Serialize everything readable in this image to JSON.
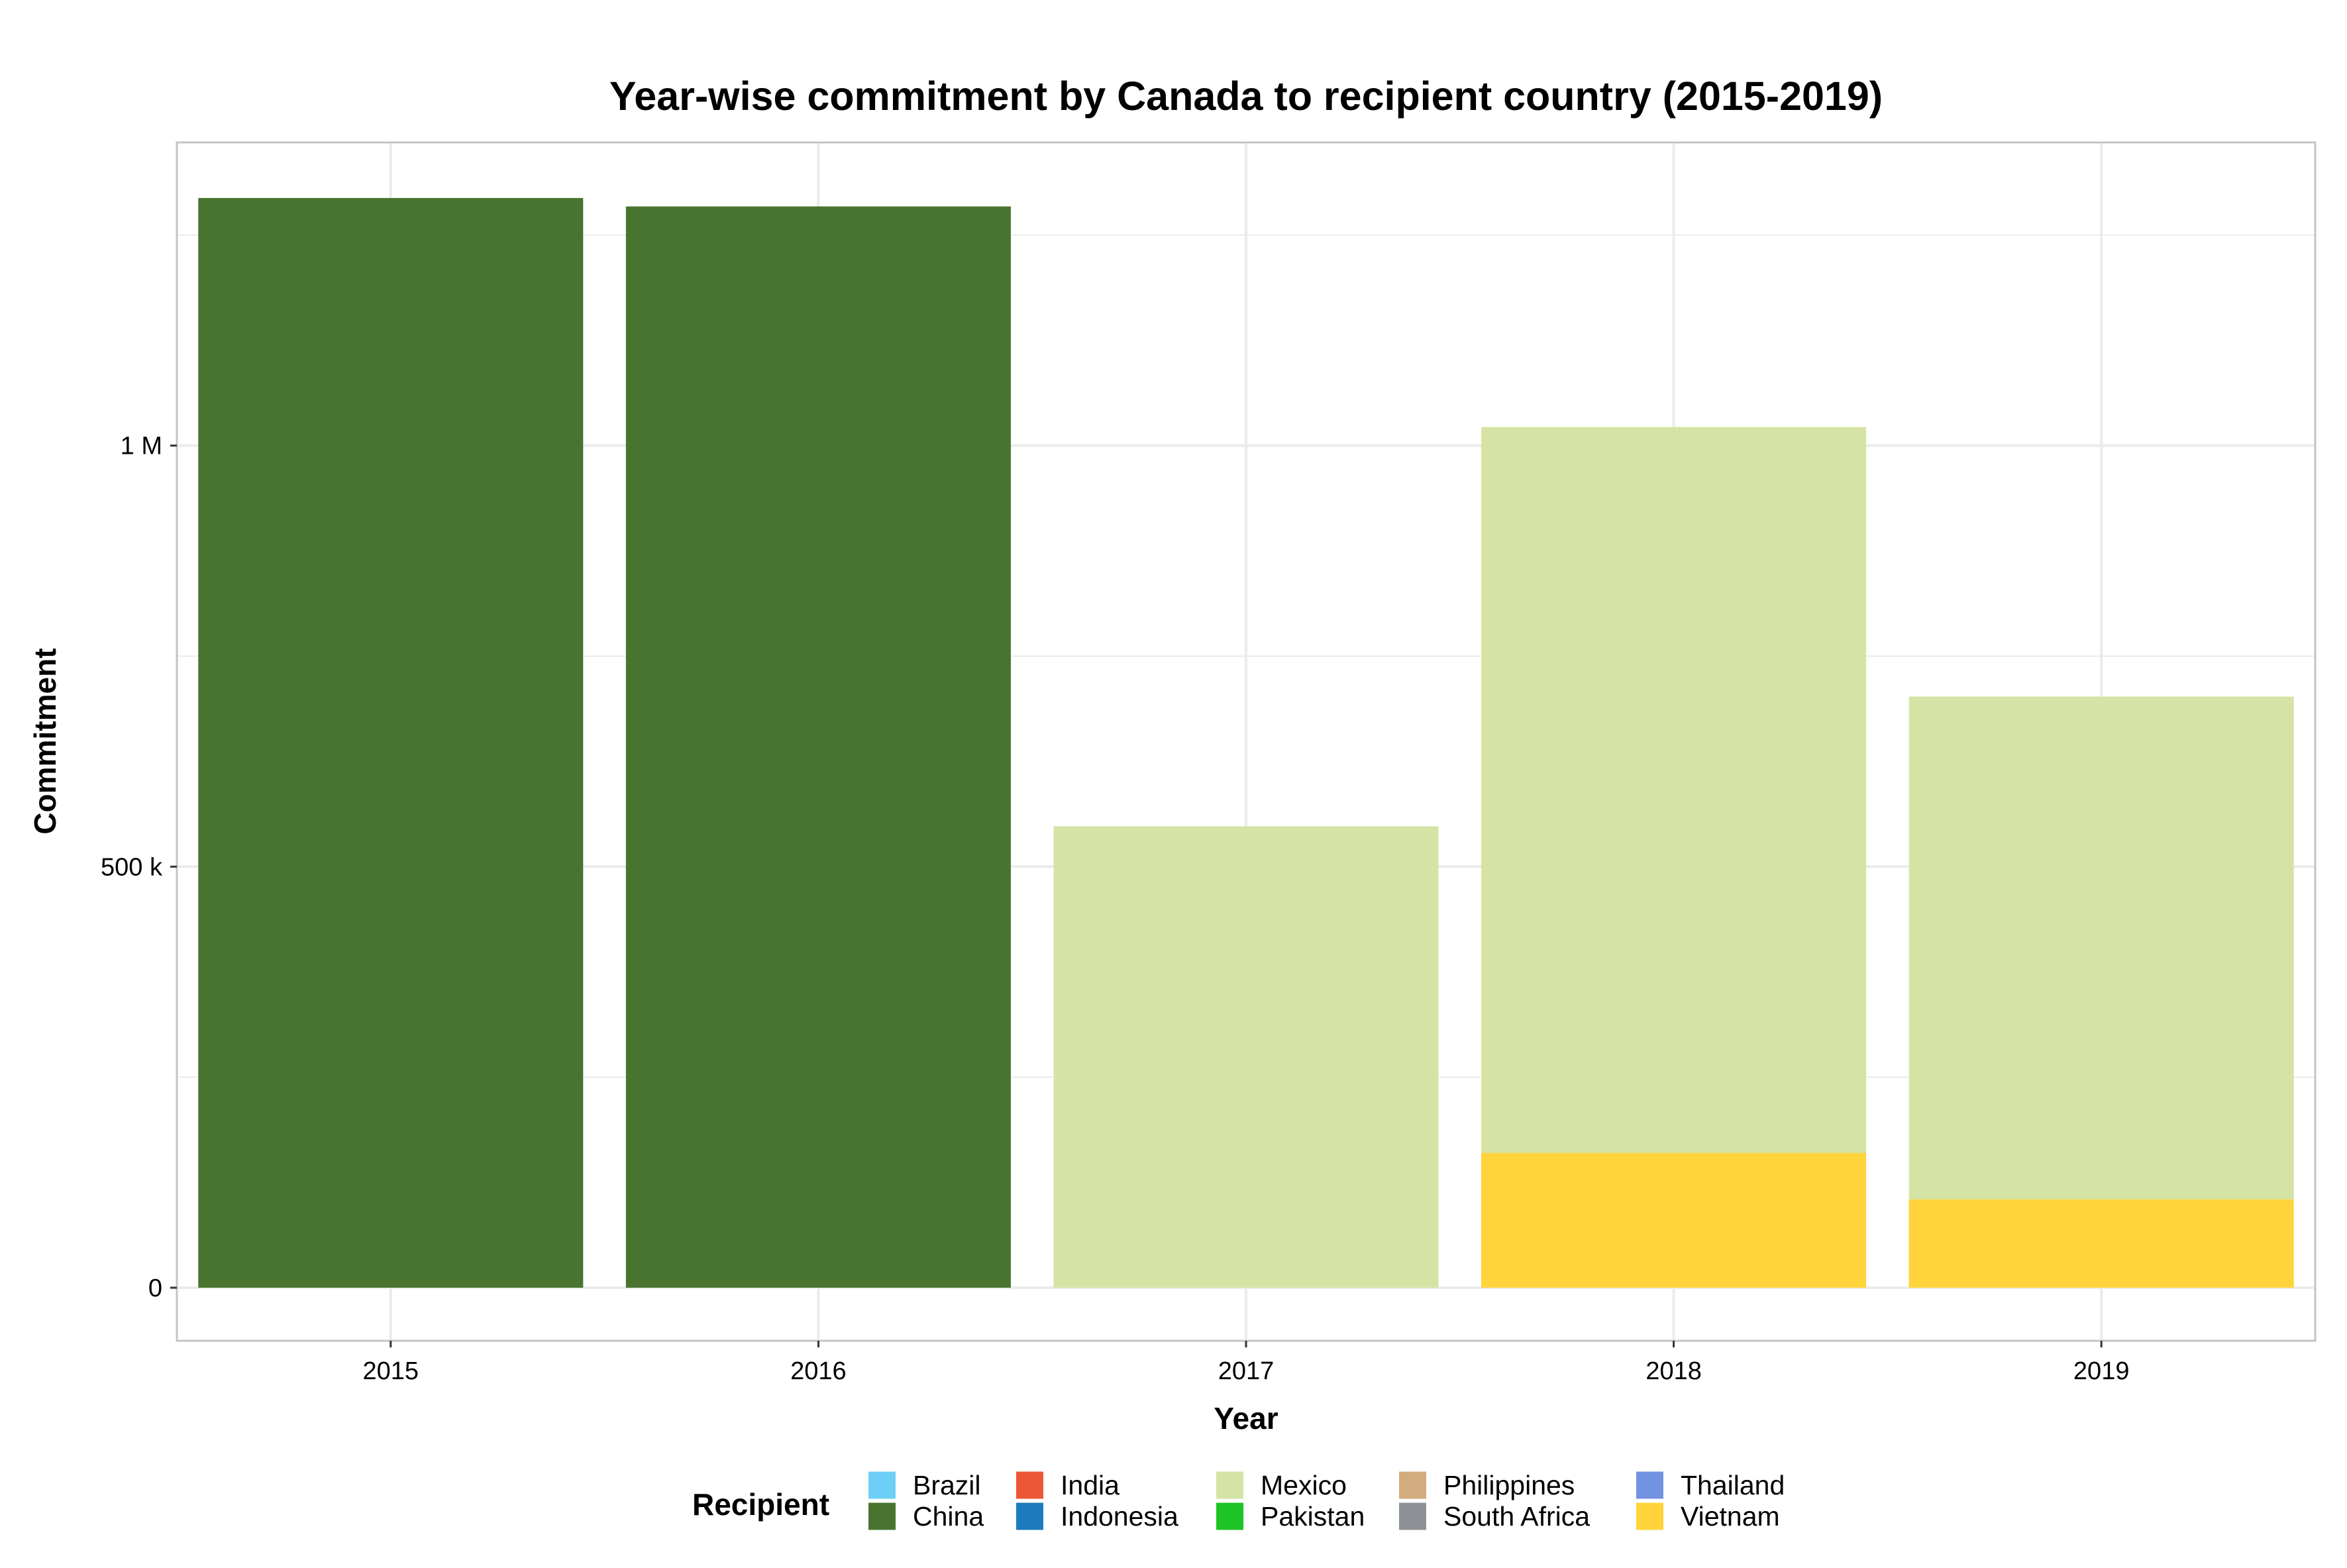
{
  "chart_data": {
    "type": "bar",
    "stacked": true,
    "title": "Year-wise commitment by Canada to recipient country (2015-2019)",
    "xlabel": "Year",
    "ylabel": "Commitment",
    "categories": [
      "2015",
      "2016",
      "2017",
      "2018",
      "2019"
    ],
    "y_ticks": [
      {
        "value": 0,
        "label": "0"
      },
      {
        "value": 500000,
        "label": "500 k"
      },
      {
        "value": 1000000,
        "label": "1 M"
      }
    ],
    "ylim": [
      -63000,
      1360000
    ],
    "grid": true,
    "legend": {
      "title": "Recipient",
      "placement": "bottom",
      "entries": [
        {
          "name": "Brazil",
          "color": "#6ECFF6"
        },
        {
          "name": "China",
          "color": "#48742F"
        },
        {
          "name": "India",
          "color": "#EC5835"
        },
        {
          "name": "Indonesia",
          "color": "#1B7BBC"
        },
        {
          "name": "Mexico",
          "color": "#D5E4A5"
        },
        {
          "name": "Pakistan",
          "color": "#1EC425"
        },
        {
          "name": "Philippines",
          "color": "#D2AC7E"
        },
        {
          "name": "South Africa",
          "color": "#8D9195"
        },
        {
          "name": "Thailand",
          "color": "#7293E1"
        },
        {
          "name": "Vietnam",
          "color": "#FFD43B"
        }
      ]
    },
    "series": [
      {
        "name": "Vietnam",
        "values": [
          0,
          0,
          0,
          160000,
          105000
        ]
      },
      {
        "name": "Mexico",
        "values": [
          0,
          0,
          548000,
          862000,
          597000
        ]
      },
      {
        "name": "China",
        "values": [
          1294000,
          1284000,
          0,
          0,
          0
        ]
      }
    ]
  }
}
